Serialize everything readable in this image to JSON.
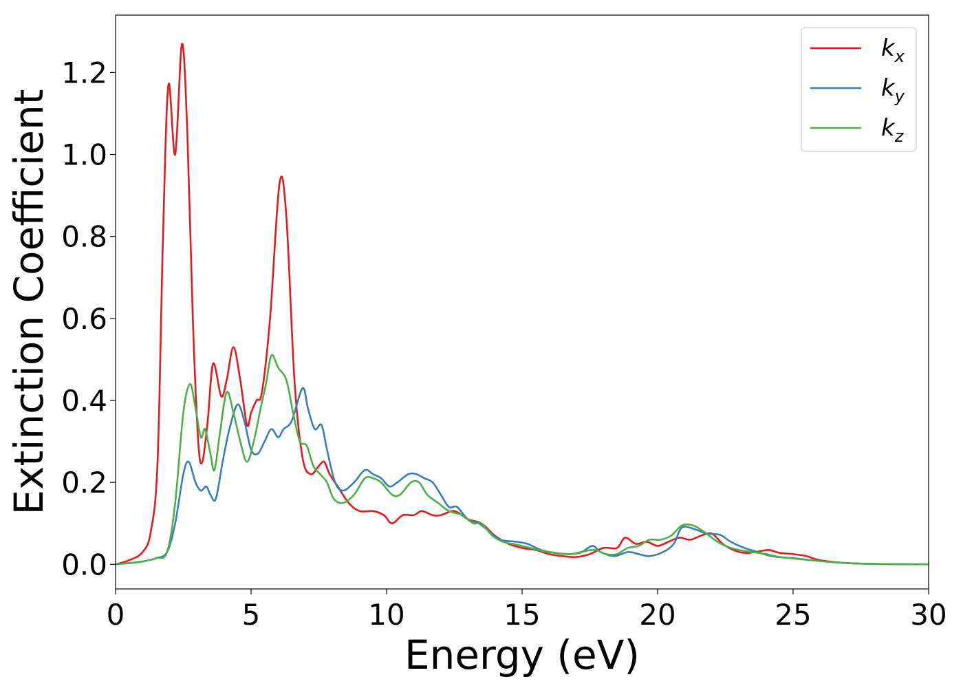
{
  "chart_data": {
    "type": "line",
    "xlabel": "Energy (eV)",
    "ylabel": "Extinction Coefficient",
    "xlim": [
      0,
      30
    ],
    "ylim": [
      -0.06,
      1.34
    ],
    "xticks": [
      0,
      5,
      10,
      15,
      20,
      25,
      30
    ],
    "xtick_labels": [
      "0",
      "5",
      "10",
      "15",
      "20",
      "25",
      "30"
    ],
    "yticks": [
      0.0,
      0.2,
      0.4,
      0.6,
      0.8,
      1.0,
      1.2
    ],
    "ytick_labels": [
      "0.0",
      "0.2",
      "0.4",
      "0.6",
      "0.8",
      "1.0",
      "1.2"
    ],
    "grid": false,
    "legend_position": "top-right",
    "series": [
      {
        "name": "k_x",
        "legend_base": "k",
        "legend_sub": "x",
        "color": "#e41a1c",
        "points": [
          [
            0,
            0.0
          ],
          [
            0.5,
            0.01
          ],
          [
            1.0,
            0.03
          ],
          [
            1.3,
            0.08
          ],
          [
            1.55,
            0.25
          ],
          [
            1.75,
            0.8
          ],
          [
            1.95,
            1.17
          ],
          [
            2.2,
            1.0
          ],
          [
            2.45,
            1.27
          ],
          [
            2.65,
            1.05
          ],
          [
            2.85,
            0.6
          ],
          [
            3.05,
            0.3
          ],
          [
            3.2,
            0.25
          ],
          [
            3.4,
            0.35
          ],
          [
            3.6,
            0.49
          ],
          [
            3.9,
            0.41
          ],
          [
            4.1,
            0.45
          ],
          [
            4.35,
            0.53
          ],
          [
            4.6,
            0.45
          ],
          [
            4.85,
            0.34
          ],
          [
            5.0,
            0.37
          ],
          [
            5.2,
            0.4
          ],
          [
            5.4,
            0.42
          ],
          [
            5.7,
            0.6
          ],
          [
            6.05,
            0.93
          ],
          [
            6.3,
            0.85
          ],
          [
            6.6,
            0.45
          ],
          [
            6.9,
            0.26
          ],
          [
            7.2,
            0.22
          ],
          [
            7.5,
            0.24
          ],
          [
            7.7,
            0.25
          ],
          [
            7.9,
            0.22
          ],
          [
            8.2,
            0.19
          ],
          [
            8.6,
            0.15
          ],
          [
            9.0,
            0.13
          ],
          [
            9.5,
            0.13
          ],
          [
            9.9,
            0.12
          ],
          [
            10.2,
            0.1
          ],
          [
            10.6,
            0.12
          ],
          [
            11.0,
            0.12
          ],
          [
            11.3,
            0.13
          ],
          [
            11.7,
            0.12
          ],
          [
            12.0,
            0.12
          ],
          [
            12.5,
            0.13
          ],
          [
            13.0,
            0.11
          ],
          [
            13.5,
            0.1
          ],
          [
            14.0,
            0.07
          ],
          [
            14.5,
            0.05
          ],
          [
            15.0,
            0.04
          ],
          [
            15.5,
            0.035
          ],
          [
            16.0,
            0.025
          ],
          [
            16.5,
            0.02
          ],
          [
            17.0,
            0.018
          ],
          [
            17.5,
            0.025
          ],
          [
            18.0,
            0.04
          ],
          [
            18.5,
            0.04
          ],
          [
            18.8,
            0.065
          ],
          [
            19.2,
            0.05
          ],
          [
            19.6,
            0.055
          ],
          [
            20.0,
            0.045
          ],
          [
            20.4,
            0.055
          ],
          [
            20.8,
            0.065
          ],
          [
            21.2,
            0.06
          ],
          [
            21.6,
            0.07
          ],
          [
            22.0,
            0.075
          ],
          [
            22.4,
            0.05
          ],
          [
            22.8,
            0.035
          ],
          [
            23.2,
            0.028
          ],
          [
            23.6,
            0.03
          ],
          [
            24.1,
            0.035
          ],
          [
            24.5,
            0.028
          ],
          [
            25.0,
            0.025
          ],
          [
            25.5,
            0.02
          ],
          [
            26.0,
            0.01
          ],
          [
            27.0,
            0.003
          ],
          [
            28.0,
            0.001
          ],
          [
            30.0,
            0.0
          ]
        ]
      },
      {
        "name": "k_y",
        "legend_base": "k",
        "legend_sub": "y",
        "color": "#377eb8",
        "points": [
          [
            0,
            0.0
          ],
          [
            0.5,
            0.003
          ],
          [
            1.0,
            0.007
          ],
          [
            1.5,
            0.015
          ],
          [
            1.9,
            0.03
          ],
          [
            2.2,
            0.1
          ],
          [
            2.5,
            0.22
          ],
          [
            2.7,
            0.25
          ],
          [
            2.95,
            0.2
          ],
          [
            3.15,
            0.18
          ],
          [
            3.35,
            0.19
          ],
          [
            3.5,
            0.17
          ],
          [
            3.7,
            0.16
          ],
          [
            3.95,
            0.25
          ],
          [
            4.2,
            0.33
          ],
          [
            4.5,
            0.39
          ],
          [
            4.75,
            0.35
          ],
          [
            5.0,
            0.28
          ],
          [
            5.25,
            0.27
          ],
          [
            5.5,
            0.3
          ],
          [
            5.75,
            0.33
          ],
          [
            6.0,
            0.31
          ],
          [
            6.2,
            0.33
          ],
          [
            6.5,
            0.35
          ],
          [
            6.9,
            0.43
          ],
          [
            7.1,
            0.38
          ],
          [
            7.35,
            0.33
          ],
          [
            7.6,
            0.34
          ],
          [
            7.8,
            0.28
          ],
          [
            8.1,
            0.2
          ],
          [
            8.4,
            0.18
          ],
          [
            8.8,
            0.2
          ],
          [
            9.2,
            0.23
          ],
          [
            9.5,
            0.22
          ],
          [
            9.8,
            0.21
          ],
          [
            10.1,
            0.19
          ],
          [
            10.4,
            0.2
          ],
          [
            10.8,
            0.22
          ],
          [
            11.1,
            0.22
          ],
          [
            11.4,
            0.21
          ],
          [
            11.7,
            0.2
          ],
          [
            12.0,
            0.17
          ],
          [
            12.3,
            0.14
          ],
          [
            12.6,
            0.14
          ],
          [
            13.0,
            0.11
          ],
          [
            13.4,
            0.1
          ],
          [
            13.8,
            0.08
          ],
          [
            14.2,
            0.06
          ],
          [
            14.8,
            0.055
          ],
          [
            15.2,
            0.05
          ],
          [
            15.7,
            0.035
          ],
          [
            16.2,
            0.028
          ],
          [
            16.8,
            0.025
          ],
          [
            17.2,
            0.03
          ],
          [
            17.6,
            0.045
          ],
          [
            17.9,
            0.03
          ],
          [
            18.4,
            0.02
          ],
          [
            18.9,
            0.03
          ],
          [
            19.3,
            0.025
          ],
          [
            19.7,
            0.02
          ],
          [
            20.2,
            0.03
          ],
          [
            20.6,
            0.05
          ],
          [
            20.9,
            0.09
          ],
          [
            21.4,
            0.085
          ],
          [
            21.8,
            0.075
          ],
          [
            22.3,
            0.072
          ],
          [
            22.7,
            0.055
          ],
          [
            23.2,
            0.04
          ],
          [
            23.7,
            0.03
          ],
          [
            24.2,
            0.02
          ],
          [
            25.0,
            0.015
          ],
          [
            26.0,
            0.008
          ],
          [
            27.0,
            0.003
          ],
          [
            28.0,
            0.001
          ],
          [
            30.0,
            0.0
          ]
        ]
      },
      {
        "name": "k_z",
        "legend_base": "k",
        "legend_sub": "z",
        "color": "#4daf4a",
        "points": [
          [
            0,
            0.0
          ],
          [
            0.5,
            0.003
          ],
          [
            1.0,
            0.007
          ],
          [
            1.5,
            0.015
          ],
          [
            1.9,
            0.03
          ],
          [
            2.2,
            0.15
          ],
          [
            2.5,
            0.37
          ],
          [
            2.75,
            0.44
          ],
          [
            2.95,
            0.38
          ],
          [
            3.15,
            0.31
          ],
          [
            3.3,
            0.33
          ],
          [
            3.5,
            0.27
          ],
          [
            3.65,
            0.23
          ],
          [
            3.85,
            0.32
          ],
          [
            4.1,
            0.42
          ],
          [
            4.35,
            0.37
          ],
          [
            4.6,
            0.3
          ],
          [
            4.85,
            0.25
          ],
          [
            5.1,
            0.3
          ],
          [
            5.35,
            0.38
          ],
          [
            5.55,
            0.44
          ],
          [
            5.75,
            0.51
          ],
          [
            6.0,
            0.48
          ],
          [
            6.3,
            0.45
          ],
          [
            6.55,
            0.37
          ],
          [
            6.8,
            0.3
          ],
          [
            7.05,
            0.29
          ],
          [
            7.3,
            0.24
          ],
          [
            7.55,
            0.22
          ],
          [
            7.8,
            0.2
          ],
          [
            8.05,
            0.16
          ],
          [
            8.4,
            0.15
          ],
          [
            8.8,
            0.17
          ],
          [
            9.2,
            0.21
          ],
          [
            9.5,
            0.21
          ],
          [
            9.8,
            0.2
          ],
          [
            10.2,
            0.17
          ],
          [
            10.5,
            0.17
          ],
          [
            10.9,
            0.2
          ],
          [
            11.2,
            0.2
          ],
          [
            11.5,
            0.17
          ],
          [
            11.9,
            0.15
          ],
          [
            12.3,
            0.13
          ],
          [
            12.8,
            0.12
          ],
          [
            13.2,
            0.1
          ],
          [
            13.5,
            0.1
          ],
          [
            13.9,
            0.07
          ],
          [
            14.3,
            0.055
          ],
          [
            14.8,
            0.048
          ],
          [
            15.3,
            0.04
          ],
          [
            15.8,
            0.032
          ],
          [
            16.3,
            0.027
          ],
          [
            16.8,
            0.025
          ],
          [
            17.3,
            0.032
          ],
          [
            17.7,
            0.035
          ],
          [
            18.1,
            0.025
          ],
          [
            18.5,
            0.025
          ],
          [
            18.9,
            0.04
          ],
          [
            19.3,
            0.045
          ],
          [
            19.7,
            0.06
          ],
          [
            20.1,
            0.06
          ],
          [
            20.5,
            0.07
          ],
          [
            20.9,
            0.095
          ],
          [
            21.3,
            0.095
          ],
          [
            21.7,
            0.08
          ],
          [
            22.1,
            0.06
          ],
          [
            22.5,
            0.045
          ],
          [
            23.0,
            0.035
          ],
          [
            23.5,
            0.03
          ],
          [
            24.0,
            0.025
          ],
          [
            24.5,
            0.018
          ],
          [
            25.2,
            0.013
          ],
          [
            26.0,
            0.008
          ],
          [
            27.0,
            0.003
          ],
          [
            28.0,
            0.001
          ],
          [
            30.0,
            0.0
          ]
        ]
      }
    ]
  }
}
